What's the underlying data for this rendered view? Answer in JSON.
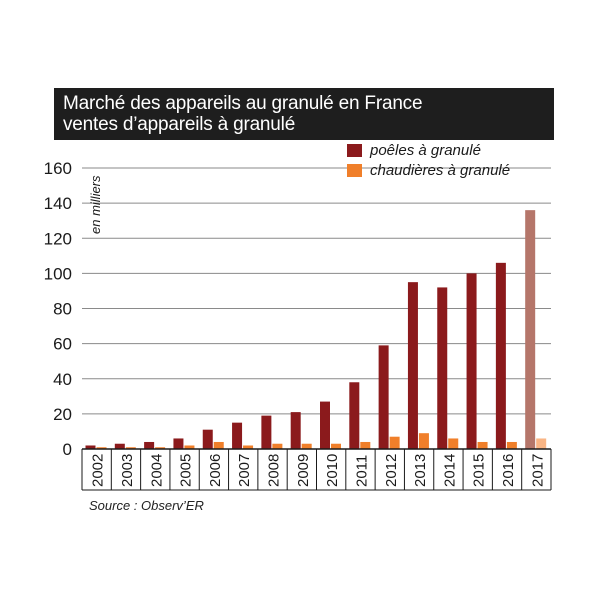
{
  "chart_data": {
    "type": "bar",
    "title": "Marché des appareils au granulé en France",
    "subtitle": "ventes d’appareils à granulé",
    "ylabel": "en milliers",
    "xlabel": "",
    "ylim": [
      0,
      160
    ],
    "yticks": [
      0,
      20,
      40,
      60,
      80,
      100,
      120,
      140,
      160
    ],
    "grid": true,
    "legend_position": "top-right",
    "categories": [
      "2002",
      "2003",
      "2004",
      "2005",
      "2006",
      "2007",
      "2008",
      "2009",
      "2010",
      "2011",
      "2012",
      "2013",
      "2014",
      "2015",
      "2016",
      "2017"
    ],
    "series": [
      {
        "name": "poêles à granulé",
        "color": "#8b1a1c",
        "highlight_color": "#b5766a",
        "values": [
          2,
          3,
          4,
          6,
          11,
          15,
          19,
          21,
          27,
          38,
          59,
          95,
          92,
          100,
          106,
          136
        ]
      },
      {
        "name": "chaudières à granulé",
        "color": "#f07f2a",
        "highlight_color": "#f9b585",
        "values": [
          1,
          1,
          1,
          2,
          4,
          2,
          3,
          3,
          3,
          4,
          7,
          9,
          6,
          4,
          4,
          6
        ]
      }
    ],
    "highlighted_category": "2017",
    "source": "Source : Observ’ER"
  }
}
